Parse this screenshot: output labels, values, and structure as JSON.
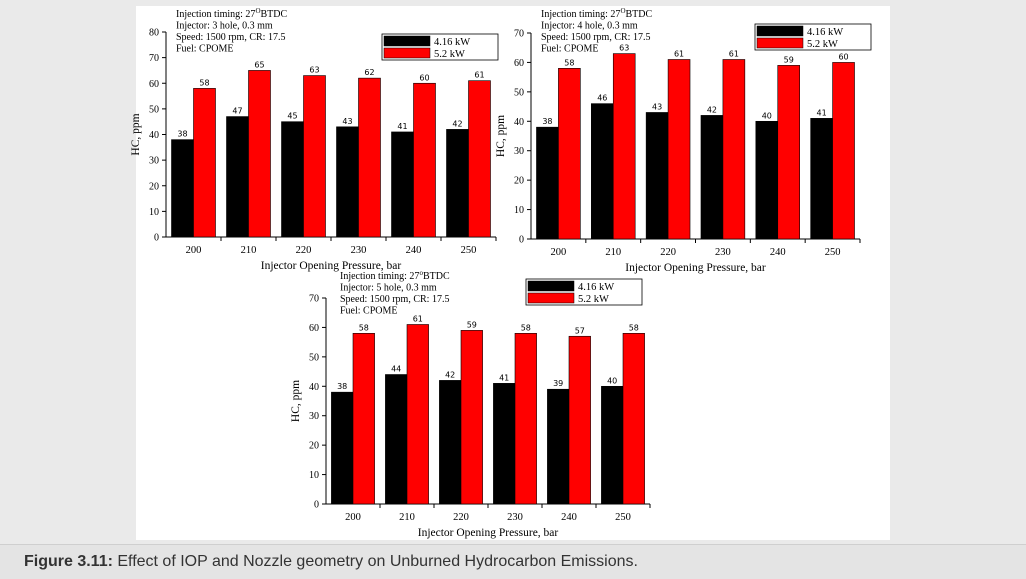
{
  "figure_caption": {
    "label": "Figure 3.11:",
    "text": " Effect of IOP and Nozzle geometry on Unburned Hydrocarbon Emissions."
  },
  "chart_data": [
    {
      "type": "bar",
      "annotations": [
        "Injection timing: 27",
        "Injector: 3 hole, 0.3 mm",
        "Speed: 1500 rpm, CR: 17.5",
        "Fuel: CPOME"
      ],
      "timing_superscript": "O",
      "timing_suffix": "BTDC",
      "categories": [
        "200",
        "210",
        "220",
        "230",
        "240",
        "250"
      ],
      "series": [
        {
          "name": "4.16 kW",
          "color": "#000000",
          "values": [
            38,
            47,
            45,
            43,
            41,
            42
          ]
        },
        {
          "name": "5.2 kW",
          "color": "#ff0000",
          "values": [
            58,
            65,
            63,
            62,
            60,
            61
          ]
        }
      ],
      "xlabel": "Injector Opening Pressure, bar",
      "ylabel": "HC, ppm",
      "ylim": [
        0,
        80
      ],
      "yticks": [
        0,
        10,
        20,
        30,
        40,
        50,
        60,
        70,
        80
      ]
    },
    {
      "type": "bar",
      "annotations": [
        "Injection timing: 27",
        "Injector: 4 hole, 0.3 mm",
        "Speed: 1500 rpm, CR: 17.5",
        "Fuel: CPOME"
      ],
      "timing_superscript": "O",
      "timing_suffix": "BTDC",
      "categories": [
        "200",
        "210",
        "220",
        "230",
        "240",
        "250"
      ],
      "series": [
        {
          "name": "4.16 kW",
          "color": "#000000",
          "values": [
            38,
            46,
            43,
            42,
            40,
            41
          ]
        },
        {
          "name": "5.2 kW",
          "color": "#ff0000",
          "values": [
            58,
            63,
            61,
            61,
            59,
            60
          ]
        }
      ],
      "xlabel": "Injector Opening Pressure, bar",
      "ylabel": "HC, ppm",
      "ylim": [
        0,
        70
      ],
      "yticks": [
        0,
        10,
        20,
        30,
        40,
        50,
        60,
        70
      ]
    },
    {
      "type": "bar",
      "annotations": [
        "Injection timing: 27",
        "Injector: 5 hole, 0.3 mm",
        "Speed: 1500 rpm, CR: 17.5",
        "Fuel: CPOME"
      ],
      "timing_superscript": "o",
      "timing_suffix": "BTDC",
      "categories": [
        "200",
        "210",
        "220",
        "230",
        "240",
        "250"
      ],
      "series": [
        {
          "name": "4.16 kW",
          "color": "#000000",
          "values": [
            38,
            44,
            42,
            41,
            39,
            40
          ]
        },
        {
          "name": "5.2 kW",
          "color": "#ff0000",
          "values": [
            58,
            61,
            59,
            58,
            57,
            58
          ]
        }
      ],
      "xlabel": "Injector Opening Pressure, bar",
      "ylabel": "HC, ppm",
      "ylim": [
        0,
        70
      ],
      "yticks": [
        0,
        10,
        20,
        30,
        40,
        50,
        60,
        70
      ]
    }
  ]
}
